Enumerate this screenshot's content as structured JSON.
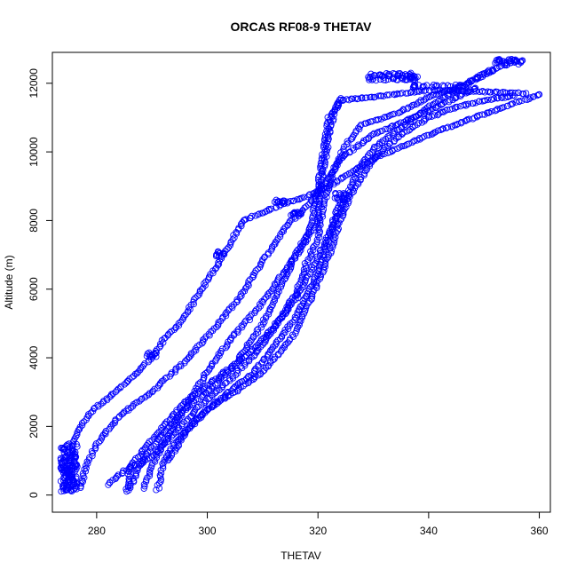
{
  "chart_data": {
    "type": "scatter",
    "title": "ORCAS RF08-9 THETAV",
    "xlabel": "THETAV",
    "ylabel": "Altitude (m)",
    "xlim": [
      272.0,
      362.0
    ],
    "ylim": [
      -500,
      12900
    ],
    "xticks": [
      280,
      300,
      320,
      340,
      360
    ],
    "yticks": [
      0,
      2000,
      4000,
      6000,
      8000,
      10000,
      12000
    ],
    "marker": "open-circle",
    "point_color": "#0000ff",
    "profiles": [
      [
        [
          274.5,
          150
        ],
        [
          275,
          900
        ],
        [
          275.8,
          1600
        ],
        [
          277.5,
          2100
        ],
        [
          279.5,
          2500
        ],
        [
          283.5,
          3000
        ],
        [
          287.5,
          3600
        ],
        [
          290.5,
          4100
        ],
        [
          292,
          4500
        ],
        [
          295,
          5000
        ],
        [
          299,
          6000
        ],
        [
          303,
          7000
        ],
        [
          306.5,
          8000
        ],
        [
          311,
          8300
        ],
        [
          314,
          8500
        ],
        [
          318,
          8700
        ],
        [
          322,
          9000
        ],
        [
          330,
          9800
        ],
        [
          340,
          10500
        ],
        [
          350,
          11100
        ],
        [
          360.5,
          11700
        ]
      ],
      [
        [
          277,
          200
        ],
        [
          278,
          800
        ],
        [
          280,
          1500
        ],
        [
          284,
          2300
        ],
        [
          290,
          3000
        ],
        [
          296,
          3900
        ],
        [
          301,
          4800
        ],
        [
          306,
          5800
        ],
        [
          310,
          6800
        ],
        [
          314,
          7800
        ],
        [
          318,
          8400
        ],
        [
          321,
          9000
        ],
        [
          324,
          9800
        ],
        [
          330,
          10500
        ],
        [
          340,
          11200
        ],
        [
          349,
          11900
        ]
      ],
      [
        [
          286,
          150
        ],
        [
          287,
          600
        ],
        [
          289,
          1200
        ],
        [
          292,
          1800
        ],
        [
          296,
          2500
        ],
        [
          300,
          3000
        ],
        [
          305,
          3800
        ],
        [
          310,
          5000
        ],
        [
          313,
          6000
        ],
        [
          316,
          7000
        ],
        [
          318,
          7600
        ],
        [
          319,
          8000
        ],
        [
          320,
          9000
        ],
        [
          321,
          10000
        ],
        [
          322,
          11000
        ],
        [
          324,
          11500
        ],
        [
          330,
          11600
        ],
        [
          340,
          11800
        ],
        [
          351,
          11750
        ],
        [
          358,
          11700
        ]
      ],
      [
        [
          288.5,
          200
        ],
        [
          290,
          800
        ],
        [
          292,
          1500
        ],
        [
          294,
          2000
        ],
        [
          297,
          2800
        ],
        [
          300,
          3600
        ],
        [
          304,
          4500
        ],
        [
          309,
          5400
        ],
        [
          313,
          6300
        ],
        [
          317,
          7200
        ],
        [
          320,
          8000
        ],
        [
          321,
          9500
        ],
        [
          322,
          10500
        ],
        [
          323,
          11200
        ],
        [
          324.5,
          11600
        ]
      ],
      [
        [
          282,
          300
        ],
        [
          285,
          700
        ],
        [
          290,
          1100
        ],
        [
          294,
          1800
        ],
        [
          298,
          2500
        ],
        [
          303,
          3200
        ],
        [
          308,
          4000
        ],
        [
          312,
          4800
        ],
        [
          316,
          5900
        ],
        [
          318,
          6800
        ],
        [
          320,
          7500
        ],
        [
          321,
          8500
        ],
        [
          323,
          9500
        ],
        [
          325,
          10200
        ],
        [
          328,
          10800
        ],
        [
          334,
          11100
        ],
        [
          340,
          11600
        ],
        [
          346,
          11900
        ],
        [
          352,
          12400
        ]
      ],
      [
        [
          291,
          150
        ],
        [
          292,
          900
        ],
        [
          294,
          1500
        ],
        [
          298,
          2200
        ],
        [
          303,
          2900
        ],
        [
          308,
          3500
        ],
        [
          312,
          4300
        ],
        [
          316,
          5200
        ],
        [
          320,
          6500
        ],
        [
          322,
          7500
        ],
        [
          325,
          8600
        ],
        [
          327,
          9400
        ],
        [
          330,
          10100
        ],
        [
          335,
          10700
        ],
        [
          340,
          11300
        ],
        [
          345,
          11800
        ],
        [
          350,
          12300
        ],
        [
          355,
          12600
        ],
        [
          357,
          12650
        ]
      ],
      [
        [
          293,
          1000
        ],
        [
          296,
          1800
        ],
        [
          300,
          2500
        ],
        [
          305,
          3000
        ],
        [
          310,
          3600
        ],
        [
          315,
          4500
        ],
        [
          319,
          5800
        ],
        [
          322,
          7000
        ],
        [
          324,
          8000
        ],
        [
          326,
          8800
        ],
        [
          330,
          9800
        ],
        [
          335,
          10500
        ],
        [
          340,
          11000
        ],
        [
          345,
          11300
        ],
        [
          350,
          11500
        ],
        [
          356,
          11650
        ]
      ],
      [
        [
          285.5,
          100
        ],
        [
          286,
          800
        ],
        [
          289,
          1400
        ],
        [
          292,
          2000
        ],
        [
          296,
          2700
        ],
        [
          300,
          3200
        ],
        [
          304,
          3700
        ],
        [
          308,
          4200
        ],
        [
          312,
          4900
        ],
        [
          316,
          5700
        ],
        [
          319,
          6600
        ],
        [
          322,
          7600
        ],
        [
          323.5,
          8300
        ],
        [
          325,
          8800
        ]
      ]
    ],
    "clusters": [
      {
        "x": 273.5,
        "x2": 276.5,
        "y": 100,
        "y2": 1500
      },
      {
        "x": 289,
        "x2": 291,
        "y": 4020,
        "y2": 4150
      },
      {
        "x": 301.5,
        "x2": 303,
        "y": 6950,
        "y2": 7100
      },
      {
        "x": 312,
        "x2": 314,
        "y": 8500,
        "y2": 8620
      },
      {
        "x": 315,
        "x2": 317,
        "y": 8100,
        "y2": 8250
      },
      {
        "x": 329,
        "x2": 338,
        "y": 12080,
        "y2": 12300
      },
      {
        "x": 337,
        "x2": 346,
        "y": 11880,
        "y2": 11960
      },
      {
        "x": 352,
        "x2": 357.5,
        "y": 12550,
        "y2": 12700
      },
      {
        "x": 323,
        "x2": 325,
        "y": 8600,
        "y2": 8800
      }
    ],
    "grid": false,
    "legend": "none"
  }
}
